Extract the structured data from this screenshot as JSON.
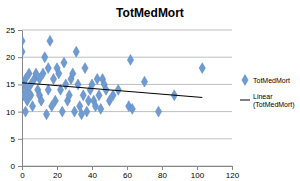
{
  "chart_data": {
    "type": "scatter",
    "title": "TotMedMort",
    "xlim": [
      0,
      120
    ],
    "xticks": [
      0,
      20,
      40,
      60,
      80,
      100,
      120
    ],
    "ylim": [
      0,
      25
    ],
    "yticks": [
      0,
      5,
      10,
      15,
      20,
      25
    ],
    "grid": true,
    "legend": "right",
    "series": [
      {
        "name": "TotMedMort",
        "type": "scatter",
        "marker": "diamond",
        "color": "#6e9bd4",
        "x": [
          0,
          0,
          1,
          1,
          2,
          2,
          3,
          3,
          4,
          5,
          5,
          6,
          7,
          8,
          9,
          10,
          10,
          11,
          12,
          13,
          14,
          15,
          15,
          16,
          17,
          18,
          19,
          20,
          21,
          22,
          23,
          24,
          25,
          26,
          27,
          28,
          29,
          30,
          31,
          32,
          33,
          34,
          35,
          36,
          37,
          38,
          39,
          40,
          41,
          42,
          43,
          44,
          45,
          46,
          47,
          48,
          50,
          52,
          55,
          61,
          62,
          63,
          70,
          78,
          87,
          103
        ],
        "values": [
          21,
          23,
          15,
          13,
          10,
          16,
          14,
          12,
          17,
          13,
          15,
          11,
          16,
          17,
          14,
          13,
          16,
          12,
          17,
          20,
          9.5,
          18,
          14,
          23,
          11,
          16,
          12,
          18,
          17,
          14,
          10,
          19,
          15,
          12,
          13,
          16,
          17,
          10,
          21,
          15,
          11,
          9.5,
          13,
          18,
          10,
          12,
          14,
          15,
          12,
          11,
          16,
          13,
          10.5,
          16,
          15,
          14,
          12,
          13,
          14,
          11,
          19.5,
          10.5,
          15.5,
          10,
          13,
          18
        ]
      },
      {
        "name": "Linear (TotMedMort)",
        "type": "line",
        "line_style": "solid",
        "color": "#000000",
        "x": [
          0,
          103
        ],
        "values": [
          15.3,
          12.6
        ]
      }
    ]
  }
}
